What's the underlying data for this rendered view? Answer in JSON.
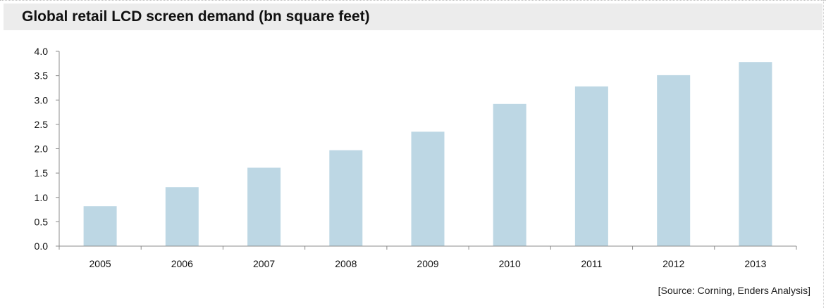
{
  "title": "Global retail LCD screen demand (bn square feet)",
  "source": "[Source:  Corning, Enders Analysis]",
  "colors": {
    "bar": "#bdd7e4",
    "axis": "#8c8c8c",
    "title_band": "#ececec"
  },
  "chart_data": {
    "type": "bar",
    "title": "Global retail LCD screen demand (bn square feet)",
    "xlabel": "",
    "ylabel": "",
    "categories": [
      "2005",
      "2006",
      "2007",
      "2008",
      "2009",
      "2010",
      "2011",
      "2012",
      "2013"
    ],
    "values": [
      0.82,
      1.21,
      1.61,
      1.97,
      2.35,
      2.92,
      3.28,
      3.51,
      3.78
    ],
    "ylim": [
      0,
      4.0
    ],
    "yticks": [
      "0.0",
      "0.5",
      "1.0",
      "1.5",
      "2.0",
      "2.5",
      "3.0",
      "3.5",
      "4.0"
    ],
    "grid": false,
    "legend": "none"
  }
}
